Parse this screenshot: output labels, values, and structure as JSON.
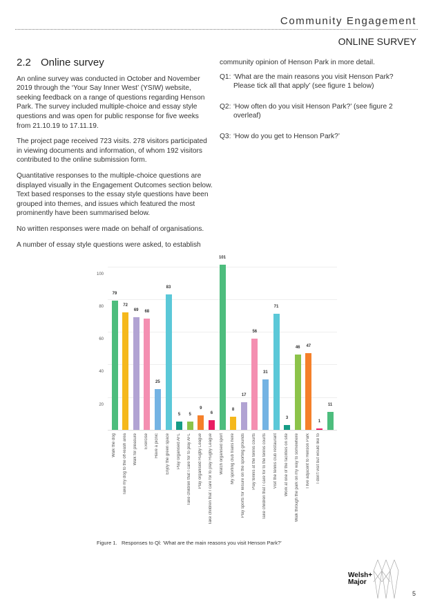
{
  "header": {
    "title": "Community Engagement",
    "subtitle": "ONLINE SURVEY"
  },
  "section": {
    "number": "2.2",
    "title": "Online survey"
  },
  "left_paragraphs": [
    "An online survey was conducted in October and November 2019 through the ‘Your Say Inner West’ (YSIW) website, seeking feedback on a range of questions regarding Henson Park. The survey included multiple-choice and essay style questions and was open for public response for five weeks from 21.10.19 to 17.11.19.",
    "The project page received 723 visits. 278 visitors participated in viewing documents and information, of whom 192 visitors contributed to the online submission form.",
    "Quantitative responses to the multiple-choice questions are displayed visually in the Engagement Outcomes section below. Text based responses to the essay style questions have been grouped into themes, and issues which featured the most prominently have been summarised below.",
    "No written responses were made on behalf of organisations.",
    "A number of essay style questions were asked, to establish"
  ],
  "right_intro": "community opinion of Henson Park in more detail.",
  "questions": [
    {
      "num": "Q1:",
      "text": "‘What are the main reasons you visit Henson Park? Please tick all that apply’ (see figure 1 below)"
    },
    {
      "num": "Q2:",
      "text": "‘How often do you visit Henson Park?’ (see figure 2 overleaf)"
    },
    {
      "num": "Q3:",
      "text": "‘How do you get to Henson Park?’"
    }
  ],
  "chart_data": {
    "type": "bar",
    "title": "",
    "categories": [
      "Walk the dog",
      "Take my dog to the off-leash area",
      "Walk for pleasure",
      "Exercise",
      "Have a picnic",
      "Enjoy the green space",
      "Play organised AFL",
      "Take children that I care for to play AFL",
      "Play organised Rugby League",
      "Take children that I care for to play Rugby League",
      "Watch organised sport",
      "My sporting club trains here",
      "Play sports for leisure on the sporting grounds",
      "Play tennis at the tennis courts",
      "Take children that I care for to the tennis courts",
      "Visit the tennis club restaurant",
      "Work at one of the facilities on site",
      "Walk through the park on my way to somewhere",
      "I live adjacent to Henson Park",
      "I don't visit but would like to",
      ""
    ],
    "values": [
      79,
      72,
      69,
      68,
      25,
      83,
      5,
      5,
      9,
      6,
      101,
      8,
      17,
      56,
      31,
      71,
      3,
      46,
      47,
      1,
      11
    ],
    "colors": [
      "#4dbd7d",
      "#f5b81c",
      "#b1a3d3",
      "#f48fb1",
      "#74b3e3",
      "#5bc8d8",
      "#169c86",
      "#8cc34a",
      "#f5802a",
      "#e91e63",
      "#4dbd7d",
      "#f5b81c",
      "#b1a3d3",
      "#f48fb1",
      "#74b3e3",
      "#5bc8d8",
      "#169c86",
      "#8cc34a",
      "#f5802a",
      "#e91e63",
      "#4dbd7d"
    ],
    "yticks": [
      20,
      40,
      60,
      80,
      100
    ],
    "ylim": [
      0,
      105
    ],
    "xlabel": "",
    "ylabel": "",
    "grid": true
  },
  "caption": {
    "label": "Figure 1.",
    "text": "Responses to Ql: ‘What are the main reasons you visit Henson Park?’"
  },
  "footer": {
    "logo": "Welsh+ Major",
    "page": "5"
  }
}
